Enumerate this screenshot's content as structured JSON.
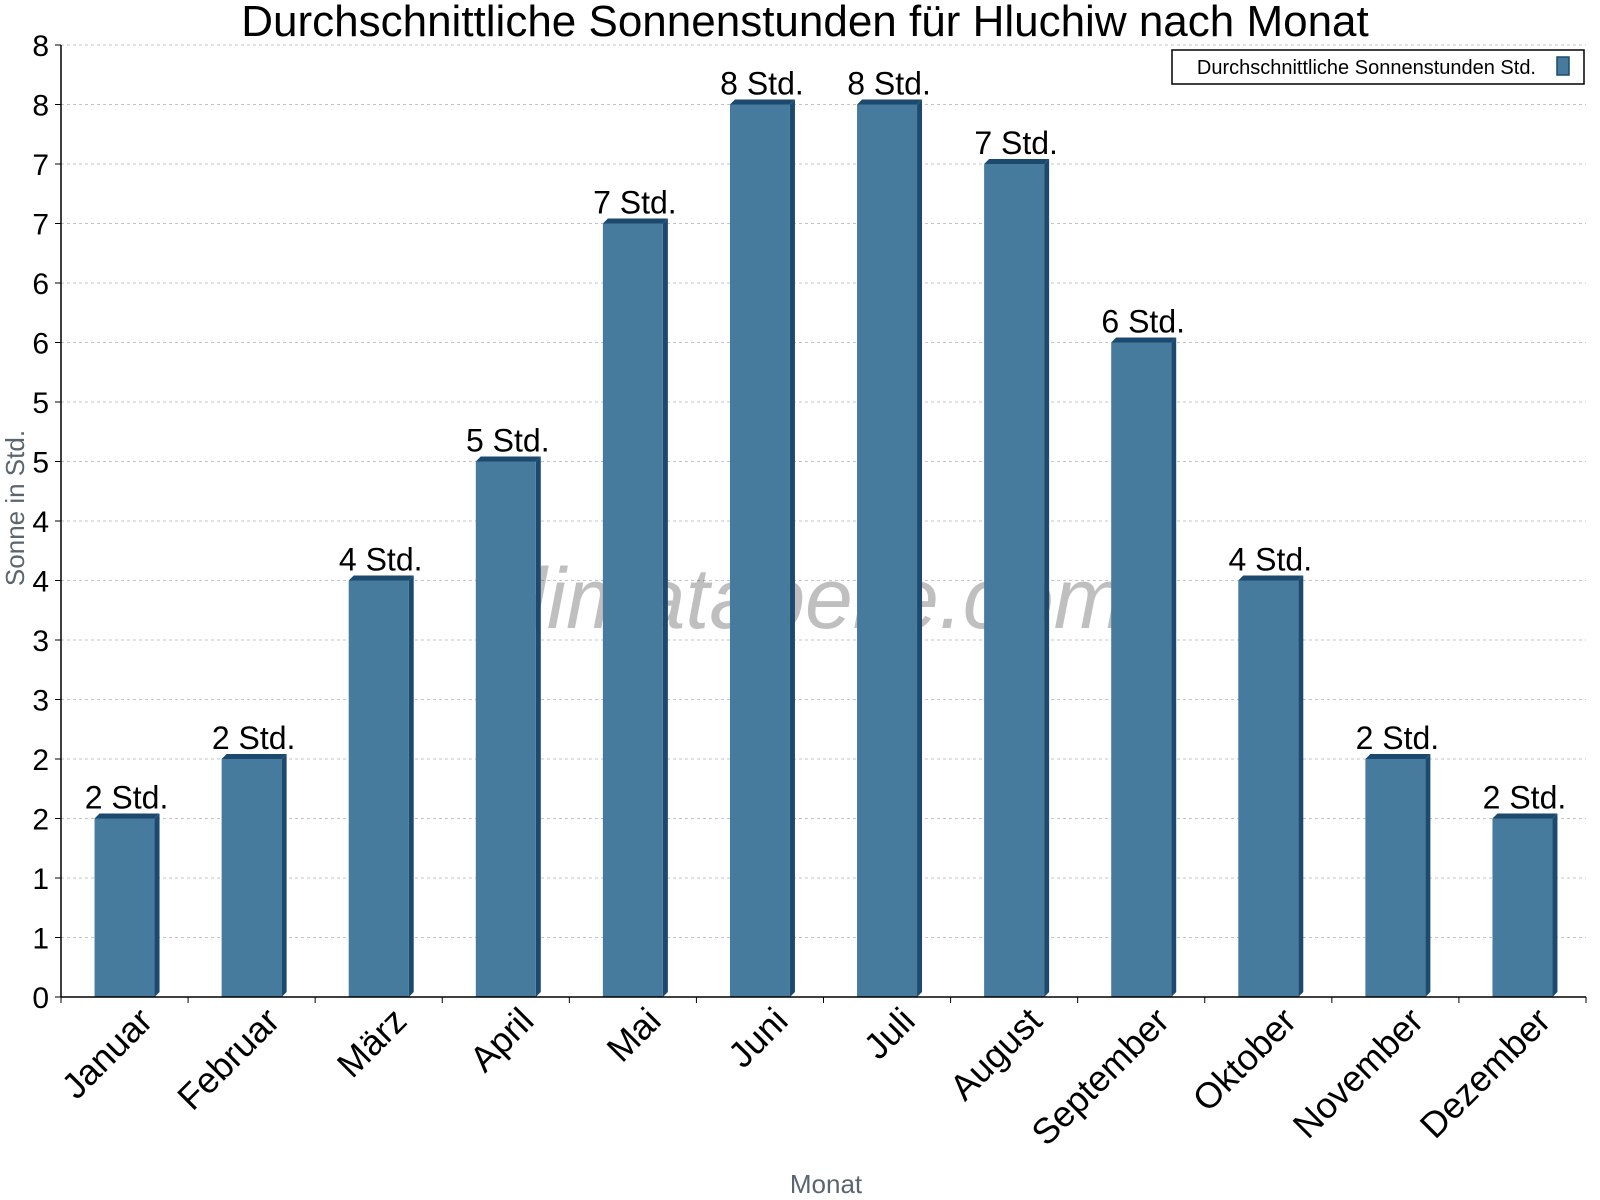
{
  "chart_data": {
    "type": "bar",
    "title": "Durchschnittliche Sonnenstunden für Hluchiw nach Monat",
    "xlabel": "Monat",
    "ylabel": "Sonne in Std.",
    "categories": [
      "Januar",
      "Februar",
      "März",
      "April",
      "Mai",
      "Juni",
      "Juli",
      "August",
      "September",
      "Oktober",
      "November",
      "Dezember"
    ],
    "series": [
      {
        "name": "Durchschnittliche Sonnenstunden Std.",
        "values": [
          1.5,
          2.0,
          3.5,
          4.5,
          6.5,
          7.5,
          7.5,
          7.0,
          5.5,
          3.5,
          2.0,
          1.5
        ],
        "labels": [
          "2 Std.",
          "2 Std.",
          "4 Std.",
          "5 Std.",
          "7 Std.",
          "8 Std.",
          "8 Std.",
          "7 Std.",
          "6 Std.",
          "4 Std.",
          "2 Std.",
          "2 Std."
        ]
      }
    ],
    "ylim": [
      0,
      8
    ],
    "yticks": [
      0,
      0.5,
      1,
      1.5,
      2,
      2.5,
      3,
      3.5,
      4,
      4.5,
      5,
      5.5,
      6,
      6.5,
      7,
      7.5,
      8
    ],
    "ytick_labels": [
      "0",
      "1",
      "1",
      "2",
      "2",
      "3",
      "3",
      "4",
      "4",
      "5",
      "5",
      "6",
      "6",
      "7",
      "7",
      "8",
      "8"
    ],
    "grid": true,
    "legend_position": "top-right",
    "bar_color": "#467b9d",
    "bar_edge_color": "#1c4a6e",
    "watermark": "klimatabelle.com"
  }
}
